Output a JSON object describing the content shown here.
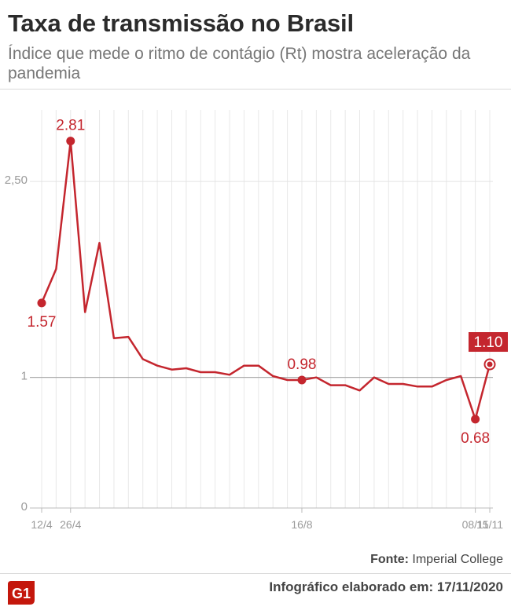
{
  "header": {
    "title": "Taxa de transmissão no Brasil",
    "subtitle": "Índice que mede o ritmo de contágio (Rt) mostra aceleração da pandemia"
  },
  "footer": {
    "source_label": "Fonte:",
    "source_value": "Imperial College",
    "credit_label": "Infográfico elaborado em:",
    "credit_value": "17/11/2020",
    "logo_text": "G1"
  },
  "colors": {
    "line": "#c4262e",
    "label_box": "#c4262e",
    "reference_line": "#aaaaaa",
    "grid": "#e8e8e8"
  },
  "chart_data": {
    "type": "line",
    "title": "",
    "xlabel": "",
    "ylabel": "",
    "ylim": [
      0,
      3.06
    ],
    "y_ticks": [
      {
        "value": 0,
        "label": "0"
      },
      {
        "value": 1,
        "label": "1"
      },
      {
        "value": 2.5,
        "label": "2,50"
      }
    ],
    "x_tick_labels": [
      {
        "index": 0,
        "label": "12/4"
      },
      {
        "index": 2,
        "label": "26/4"
      },
      {
        "index": 18,
        "label": "16/8"
      },
      {
        "index": 30,
        "label": "08/11"
      },
      {
        "index": 31,
        "label": "15/11"
      }
    ],
    "series": [
      {
        "values": [
          1.57,
          1.83,
          2.81,
          1.5,
          2.03,
          1.3,
          1.31,
          1.14,
          1.09,
          1.06,
          1.07,
          1.04,
          1.04,
          1.02,
          1.09,
          1.09,
          1.01,
          0.98,
          0.98,
          1.0,
          0.94,
          0.94,
          0.9,
          1.0,
          0.95,
          0.95,
          0.93,
          0.93,
          0.98,
          1.01,
          0.68,
          1.1
        ]
      }
    ],
    "annotations": [
      {
        "index": 0,
        "label": "1.57",
        "position": "below",
        "boxed": false
      },
      {
        "index": 2,
        "label": "2.81",
        "position": "above",
        "boxed": false
      },
      {
        "index": 18,
        "label": "0.98",
        "position": "above",
        "boxed": false
      },
      {
        "index": 30,
        "label": "0.68",
        "position": "below",
        "boxed": false
      },
      {
        "index": 31,
        "label": "1.10",
        "position": "above",
        "boxed": true
      }
    ]
  }
}
